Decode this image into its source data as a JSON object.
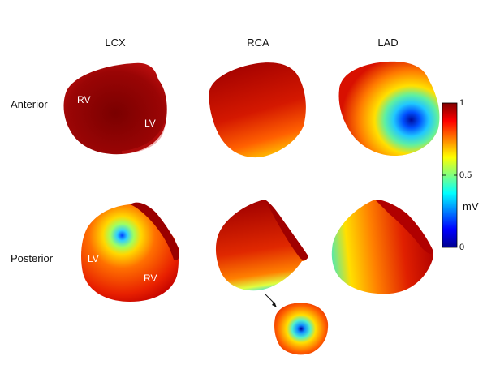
{
  "columns": [
    "LCX",
    "RCA",
    "LAD"
  ],
  "rows": [
    "Anterior",
    "Posterior"
  ],
  "region_labels": {
    "rv": "RV",
    "lv": "LV"
  },
  "colorbar": {
    "max": "1",
    "mid": "0.5",
    "min": "0",
    "unit": "mV"
  },
  "colors": {
    "dark_red": "#8b0000",
    "red": "#d10000",
    "orange": "#ff6a00",
    "yellow": "#ffe000",
    "cyan": "#30e0e0",
    "blue": "#0010c0"
  }
}
